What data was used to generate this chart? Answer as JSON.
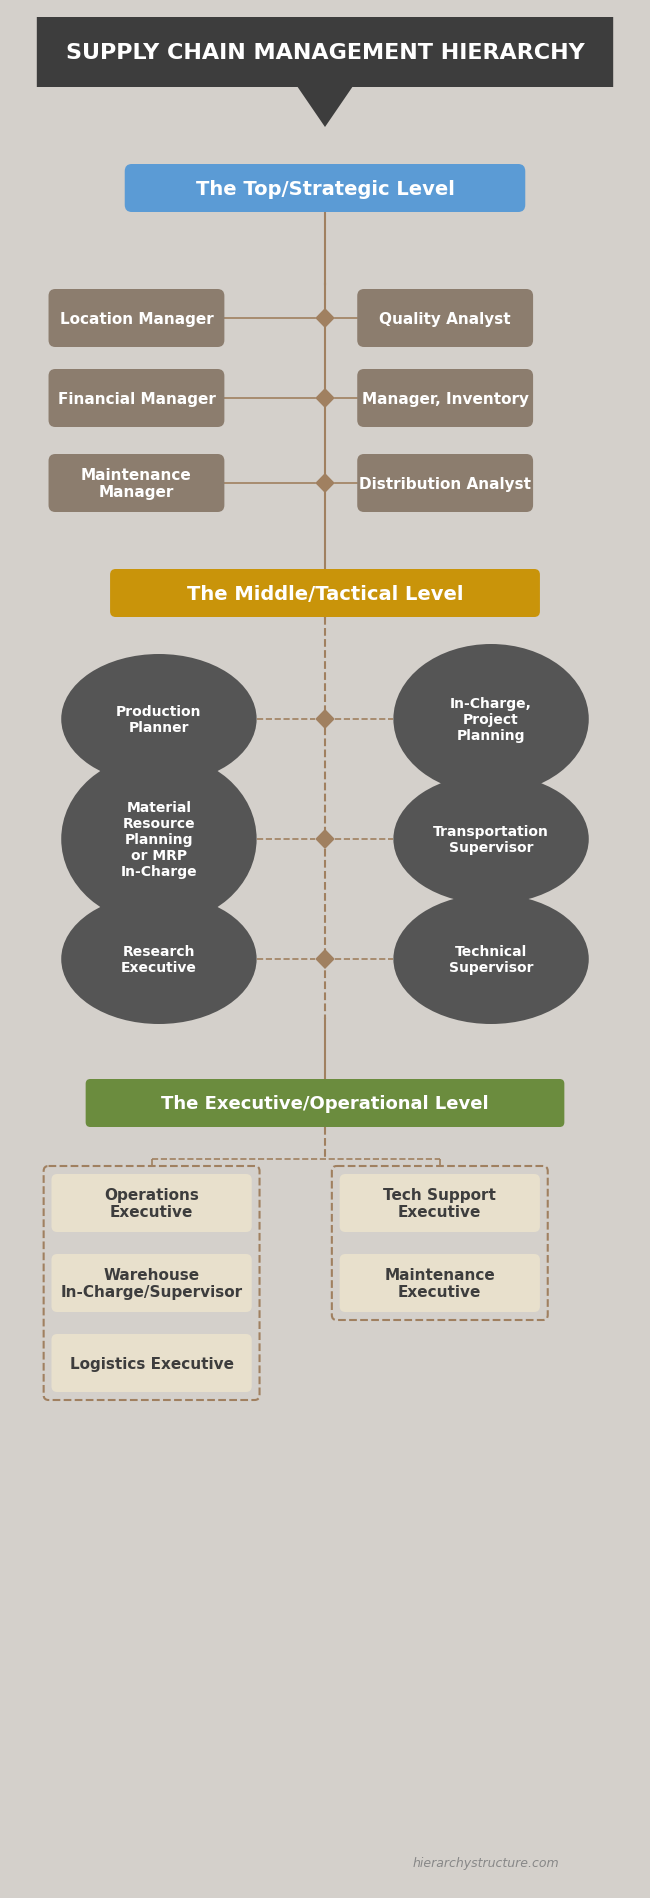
{
  "title": "SUPPLY CHAIN MANAGEMENT HIERARCHY",
  "bg_color": "#d4d0cb",
  "title_bg": "#3d3d3d",
  "title_fg": "#ffffff",
  "level1_label": "The Top/Strategic Level",
  "level1_color": "#5b9bd5",
  "level1_fg": "#ffffff",
  "level2_label": "The Middle/Tactical Level",
  "level2_color": "#c9940a",
  "level2_fg": "#ffffff",
  "level3_label": "The Executive/Operational Level",
  "level3_color": "#6b8c3e",
  "level3_fg": "#ffffff",
  "rect_color": "#8c7d6e",
  "rect_fg": "#ffffff",
  "oval_color": "#555555",
  "oval_fg": "#ffffff",
  "exec_rect_color": "#e8e0cc",
  "exec_rect_fg": "#3d3d3d",
  "line_color": "#a08060",
  "top_left_nodes": [
    "Location Manager",
    "Financial Manager",
    "Maintenance\nManager"
  ],
  "top_right_nodes": [
    "Quality Analyst",
    "Manager, Inventory",
    "Distribution Analyst"
  ],
  "mid_left_nodes": [
    "Production\nPlanner",
    "Material\nResource\nPlanning\nor MRP\nIn-Charge",
    "Research\nExecutive"
  ],
  "mid_right_nodes": [
    "In-Charge,\nProject\nPlanning",
    "Transportation\nSupervisor",
    "Technical\nSupervisor"
  ],
  "exec_left_nodes": [
    "Operations\nExecutive",
    "Warehouse\nIn-Charge/Supervisor",
    "Logistics Executive"
  ],
  "exec_right_nodes": [
    "Tech Support\nExecutive",
    "Maintenance\nExecutive"
  ],
  "watermark": "hierarchystructure.com"
}
